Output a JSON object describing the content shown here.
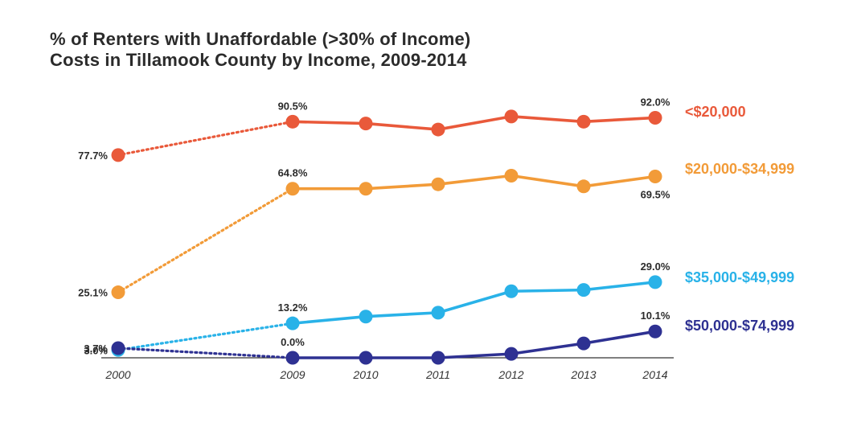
{
  "chart_data": {
    "type": "line",
    "title": "% of Renters with Unaffordable (>30% of Income) Costs in Tillamook County by Income, 2009-2014",
    "title_lines": [
      "% of Renters with Unaffordable (>30% of Income)",
      "Costs in Tillamook County by Income, 2009-2014"
    ],
    "xlabel": "",
    "ylabel": "",
    "x": [
      "2000",
      "2009",
      "2010",
      "2011",
      "2012",
      "2013",
      "2014"
    ],
    "ylim": [
      0,
      100
    ],
    "grid": false,
    "legend": "right",
    "series": [
      {
        "name": "<$20,000",
        "color": "#e9593a",
        "values": [
          77.7,
          90.5,
          89.8,
          87.5,
          92.5,
          90.5,
          92.0
        ],
        "labels": [
          {
            "index": 0,
            "text": "77.7%",
            "position": "left"
          },
          {
            "index": 1,
            "text": "90.5%",
            "position": "above"
          },
          {
            "index": 6,
            "text": "92.0%",
            "position": "above"
          }
        ]
      },
      {
        "name": "$20,000-$34,999",
        "color": "#f29b38",
        "values": [
          25.1,
          64.8,
          64.8,
          66.5,
          69.8,
          65.7,
          69.5
        ],
        "labels": [
          {
            "index": 0,
            "text": "25.1%",
            "position": "left"
          },
          {
            "index": 1,
            "text": "64.8%",
            "position": "above"
          },
          {
            "index": 6,
            "text": "69.5%",
            "position": "below"
          }
        ]
      },
      {
        "name": "$35,000-$49,999",
        "color": "#29b2e8",
        "values": [
          3.0,
          13.2,
          15.8,
          17.3,
          25.5,
          26.0,
          29.0
        ],
        "labels": [
          {
            "index": 0,
            "text": "3.0%",
            "position": "left"
          },
          {
            "index": 1,
            "text": "13.2%",
            "position": "above"
          },
          {
            "index": 6,
            "text": "29.0%",
            "position": "above"
          }
        ]
      },
      {
        "name": "$50,000-$74,999",
        "color": "#2e3192",
        "values": [
          3.7,
          0.0,
          0.0,
          0.0,
          1.5,
          5.5,
          10.1
        ],
        "labels": [
          {
            "index": 0,
            "text": "3.7%",
            "position": "left"
          },
          {
            "index": 1,
            "text": "0.0%",
            "position": "above"
          },
          {
            "index": 6,
            "text": "10.1%",
            "position": "above"
          }
        ]
      }
    ]
  }
}
